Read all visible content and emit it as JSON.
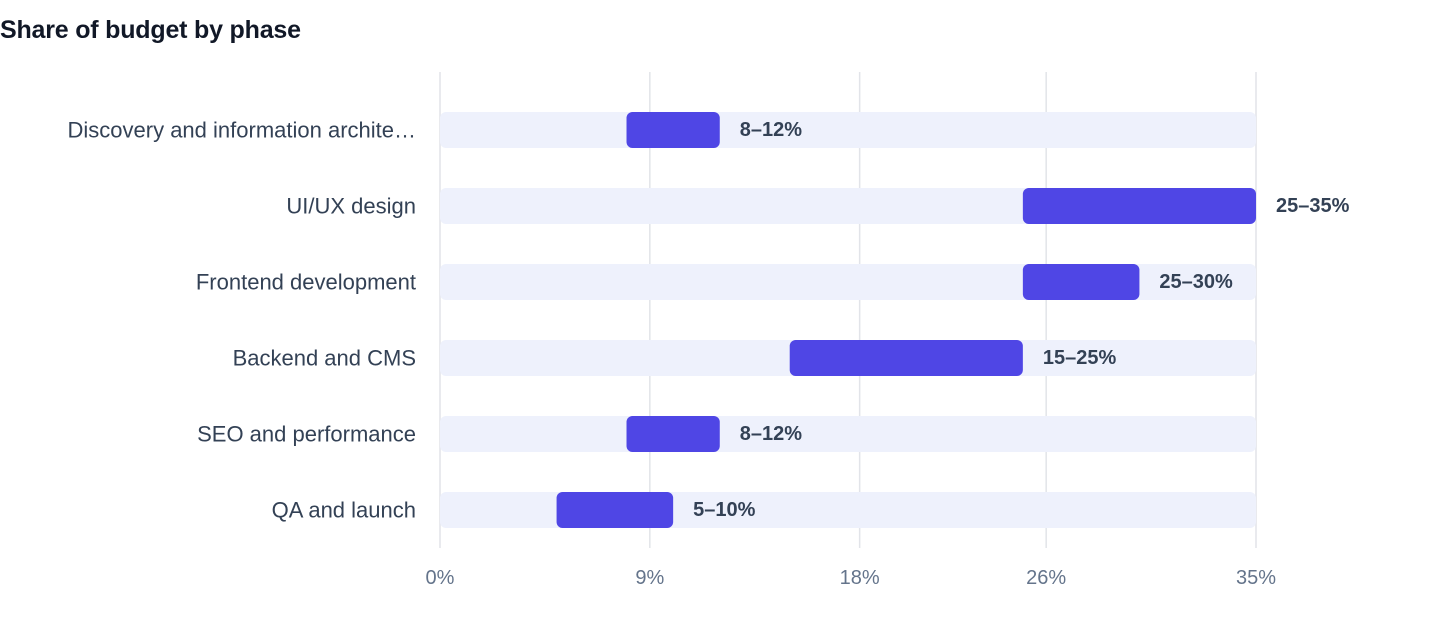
{
  "title": "Share of budget by phase",
  "chart_data": {
    "type": "bar",
    "orientation": "horizontal",
    "subtype": "range",
    "title": "Share of budget by phase",
    "xlabel": "",
    "ylabel": "",
    "xlim": [
      0,
      35
    ],
    "x_ticks": [
      0,
      9,
      18,
      26,
      35
    ],
    "x_tick_labels": [
      "0%",
      "9%",
      "18%",
      "26%",
      "35%"
    ],
    "grid": true,
    "legend": "none",
    "categories": [
      "Discovery and information archite…",
      "UI/UX design",
      "Frontend development",
      "Backend and CMS",
      "SEO and performance",
      "QA and launch"
    ],
    "ranges": [
      [
        8,
        12
      ],
      [
        25,
        35
      ],
      [
        25,
        30
      ],
      [
        15,
        25
      ],
      [
        8,
        12
      ],
      [
        5,
        10
      ]
    ],
    "labels": [
      "8–12%",
      "25–35%",
      "25–30%",
      "15–25%",
      "8–12%",
      "5–10%"
    ],
    "colors": {
      "bar": "#4f46e5",
      "track": "#eef1fc",
      "grid": "#e2e4e9",
      "category_text": "#334155",
      "tick_text": "#64748b",
      "value_text": "#334155",
      "title_text": "#111827"
    }
  }
}
